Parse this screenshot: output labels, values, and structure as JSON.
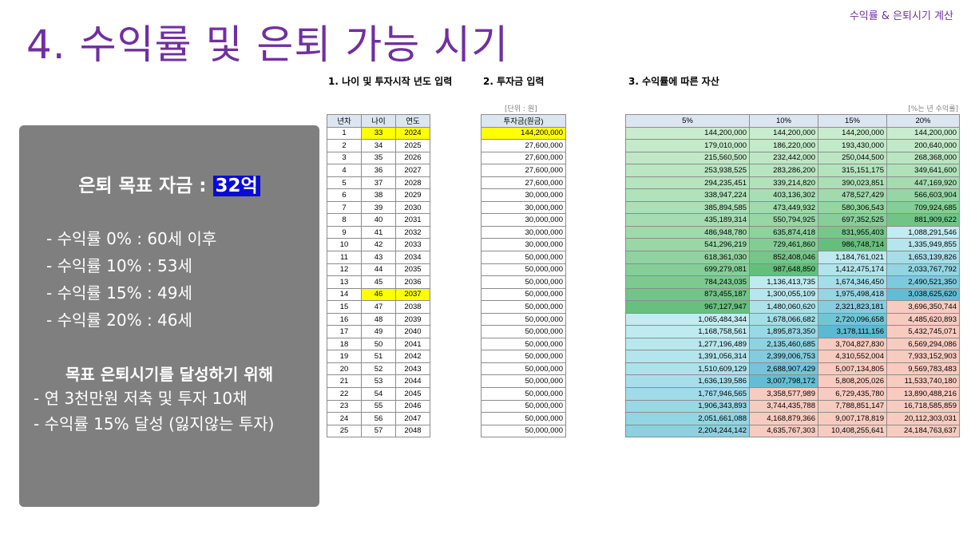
{
  "header_tag": "수익률 & 은퇴시기 계산",
  "title": "4. 수익률 및 은퇴 가능 시기",
  "panel": {
    "goal_label": "은퇴 목표 자금 : ",
    "goal_value": "32억",
    "rates": [
      "- 수익률    0% : 60세 이후",
      "- 수익률 10% : 53세",
      "- 수익률 15% : 49세",
      "- 수익률 20% : 46세"
    ],
    "plan_title": "목표 은퇴시기를 달성하기 위해",
    "plan_items": [
      "- 연 3천만원 저축 및 투자 10채",
      "- 수익률 15% 달성 (잃지않는 투자)"
    ]
  },
  "section1": {
    "title": "1. 나이 및 투자시작 년도 입력",
    "headers": [
      "년차",
      "나이",
      "연도"
    ]
  },
  "section2": {
    "title": "2. 투자금 입력",
    "unit": "[단위 : 원]",
    "header": "투자금(원금)"
  },
  "section3": {
    "title": "3. 수익률에 따른 자산",
    "unit": "[%는 년 수익률]",
    "headers": [
      "5%",
      "10%",
      "15%",
      "20%"
    ]
  },
  "colors": {
    "title_purple": "#7030a0",
    "highlight_yellow": "#ffff00",
    "goal_highlight": "#0a0ad8",
    "green_high": "#63be7b",
    "light_cyan": "#c6eef2",
    "pink": "#f8cbc0"
  },
  "table_rows": [
    {
      "n": "1",
      "age": "33",
      "year": "2024",
      "inv": "144,200,000",
      "r5": "144,200,000",
      "r10": "144,200,000",
      "r15": "144,200,000",
      "r20": "144,200,000"
    },
    {
      "n": "2",
      "age": "34",
      "year": "2025",
      "inv": "27,600,000",
      "r5": "179,010,000",
      "r10": "186,220,000",
      "r15": "193,430,000",
      "r20": "200,640,000"
    },
    {
      "n": "3",
      "age": "35",
      "year": "2026",
      "inv": "27,600,000",
      "r5": "215,560,500",
      "r10": "232,442,000",
      "r15": "250,044,500",
      "r20": "268,368,000"
    },
    {
      "n": "4",
      "age": "36",
      "year": "2027",
      "inv": "27,600,000",
      "r5": "253,938,525",
      "r10": "283,286,200",
      "r15": "315,151,175",
      "r20": "349,641,600"
    },
    {
      "n": "5",
      "age": "37",
      "year": "2028",
      "inv": "27,600,000",
      "r5": "294,235,451",
      "r10": "339,214,820",
      "r15": "390,023,851",
      "r20": "447,169,920"
    },
    {
      "n": "6",
      "age": "38",
      "year": "2029",
      "inv": "30,000,000",
      "r5": "338,947,224",
      "r10": "403,136,302",
      "r15": "478,527,429",
      "r20": "566,603,904"
    },
    {
      "n": "7",
      "age": "39",
      "year": "2030",
      "inv": "30,000,000",
      "r5": "385,894,585",
      "r10": "473,449,932",
      "r15": "580,306,543",
      "r20": "709,924,685"
    },
    {
      "n": "8",
      "age": "40",
      "year": "2031",
      "inv": "30,000,000",
      "r5": "435,189,314",
      "r10": "550,794,925",
      "r15": "697,352,525",
      "r20": "881,909,622"
    },
    {
      "n": "9",
      "age": "41",
      "year": "2032",
      "inv": "30,000,000",
      "r5": "486,948,780",
      "r10": "635,874,418",
      "r15": "831,955,403",
      "r20": "1,088,291,546"
    },
    {
      "n": "10",
      "age": "42",
      "year": "2033",
      "inv": "30,000,000",
      "r5": "541,296,219",
      "r10": "729,461,860",
      "r15": "986,748,714",
      "r20": "1,335,949,855"
    },
    {
      "n": "11",
      "age": "43",
      "year": "2034",
      "inv": "50,000,000",
      "r5": "618,361,030",
      "r10": "852,408,046",
      "r15": "1,184,761,021",
      "r20": "1,653,139,826"
    },
    {
      "n": "12",
      "age": "44",
      "year": "2035",
      "inv": "50,000,000",
      "r5": "699,279,081",
      "r10": "987,648,850",
      "r15": "1,412,475,174",
      "r20": "2,033,767,792"
    },
    {
      "n": "13",
      "age": "45",
      "year": "2036",
      "inv": "50,000,000",
      "r5": "784,243,035",
      "r10": "1,136,413,735",
      "r15": "1,674,346,450",
      "r20": "2,490,521,350"
    },
    {
      "n": "14",
      "age": "46",
      "year": "2037",
      "inv": "50,000,000",
      "r5": "873,455,187",
      "r10": "1,300,055,109",
      "r15": "1,975,498,418",
      "r20": "3,038,625,620"
    },
    {
      "n": "15",
      "age": "47",
      "year": "2038",
      "inv": "50,000,000",
      "r5": "967,127,947",
      "r10": "1,480,060,620",
      "r15": "2,321,823,181",
      "r20": "3,696,350,744"
    },
    {
      "n": "16",
      "age": "48",
      "year": "2039",
      "inv": "50,000,000",
      "r5": "1,065,484,344",
      "r10": "1,678,066,682",
      "r15": "2,720,096,658",
      "r20": "4,485,620,893"
    },
    {
      "n": "17",
      "age": "49",
      "year": "2040",
      "inv": "50,000,000",
      "r5": "1,168,758,561",
      "r10": "1,895,873,350",
      "r15": "3,178,111,156",
      "r20": "5,432,745,071"
    },
    {
      "n": "18",
      "age": "50",
      "year": "2041",
      "inv": "50,000,000",
      "r5": "1,277,196,489",
      "r10": "2,135,460,685",
      "r15": "3,704,827,830",
      "r20": "6,569,294,086"
    },
    {
      "n": "19",
      "age": "51",
      "year": "2042",
      "inv": "50,000,000",
      "r5": "1,391,056,314",
      "r10": "2,399,006,753",
      "r15": "4,310,552,004",
      "r20": "7,933,152,903"
    },
    {
      "n": "20",
      "age": "52",
      "year": "2043",
      "inv": "50,000,000",
      "r5": "1,510,609,129",
      "r10": "2,688,907,429",
      "r15": "5,007,134,805",
      "r20": "9,569,783,483"
    },
    {
      "n": "21",
      "age": "53",
      "year": "2044",
      "inv": "50,000,000",
      "r5": "1,636,139,586",
      "r10": "3,007,798,172",
      "r15": "5,808,205,026",
      "r20": "11,533,740,180"
    },
    {
      "n": "22",
      "age": "54",
      "year": "2045",
      "inv": "50,000,000",
      "r5": "1,767,946,565",
      "r10": "3,358,577,989",
      "r15": "6,729,435,780",
      "r20": "13,890,488,216"
    },
    {
      "n": "23",
      "age": "55",
      "year": "2046",
      "inv": "50,000,000",
      "r5": "1,906,343,893",
      "r10": "3,744,435,788",
      "r15": "7,788,851,147",
      "r20": "16,718,585,859"
    },
    {
      "n": "24",
      "age": "56",
      "year": "2047",
      "inv": "50,000,000",
      "r5": "2,051,661,088",
      "r10": "4,168,879,366",
      "r15": "9,007,178,819",
      "r20": "20,112,303,031"
    },
    {
      "n": "25",
      "age": "57",
      "year": "2048",
      "inv": "50,000,000",
      "r5": "2,204,244,142",
      "r10": "4,635,767,303",
      "r15": "10,408,255,641",
      "r20": "24,184,763,637"
    }
  ]
}
